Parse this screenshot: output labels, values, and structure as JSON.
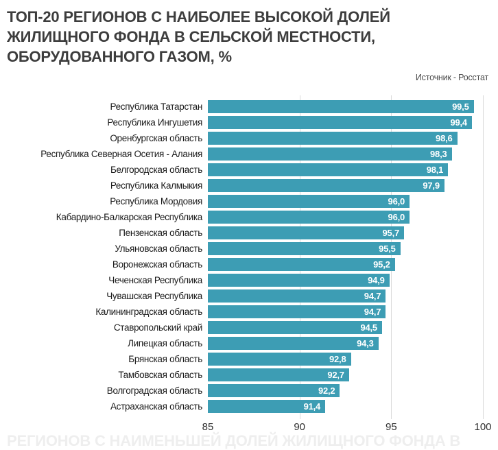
{
  "header": {
    "title_lines": [
      "ТОП-20 РЕГИОНОВ С НАИБОЛЕЕ ВЫСОКОЙ ДОЛЕЙ",
      "ЖИЛИЩНОГО ФОНДА В СЕЛЬСКОЙ МЕСТНОСТИ,",
      "ОБОРУДОВАННОГО ГАЗОМ, %"
    ],
    "source": "Источник - Росстат"
  },
  "chart_data": {
    "type": "bar",
    "orientation": "horizontal",
    "title": "ТОП-20 РЕГИОНОВ С НАИБОЛЕЕ ВЫСОКОЙ ДОЛЕЙ ЖИЛИЩНОГО ФОНДА В СЕЛЬСКОЙ МЕСТНОСТИ, ОБОРУДОВАННОГО ГАЗОМ, %",
    "source": "Источник - Росстат",
    "categories": [
      "Республика Татарстан",
      "Республика Ингушетия",
      "Оренбургская область",
      "Республика Северная Осетия - Алания",
      "Белгородская область",
      "Республика Калмыкия",
      "Республика Мордовия",
      "Кабардино-Балкарская Республика",
      "Пензенская область",
      "Ульяновская область",
      "Воронежская область",
      "Чеченская Республика",
      "Чувашская Республика",
      "Калининградская область",
      "Ставропольский край",
      "Липецкая область",
      "Брянская область",
      "Тамбовская область",
      "Волгоградская область",
      "Астраханская область"
    ],
    "values": [
      99.5,
      99.4,
      98.6,
      98.3,
      98.1,
      97.9,
      96.0,
      96.0,
      95.7,
      95.5,
      95.2,
      94.9,
      94.7,
      94.7,
      94.5,
      94.3,
      92.8,
      92.7,
      92.2,
      91.4
    ],
    "value_labels": [
      "99,5",
      "99,4",
      "98,6",
      "98,3",
      "98,1",
      "97,9",
      "96,0",
      "96,0",
      "95,7",
      "95,5",
      "95,2",
      "94,9",
      "94,7",
      "94,7",
      "94,5",
      "94,3",
      "92,8",
      "92,7",
      "92,2",
      "91,4"
    ],
    "xlim": [
      85,
      100
    ],
    "xticks": [
      85,
      90,
      95,
      100
    ],
    "xtick_labels": [
      "85",
      "90",
      "95",
      "100"
    ],
    "grid": "vertical lines at 90, 95, 100",
    "legend": "none",
    "bar_color": "#3d9db4",
    "value_label_color": "#ffffff"
  },
  "footer": {
    "next_chart_title_fragment": "РЕГИОНОВ С НАИМЕНЬШЕЙ ДОЛЕЙ ЖИЛИЩНОГО ФОНДА В"
  }
}
